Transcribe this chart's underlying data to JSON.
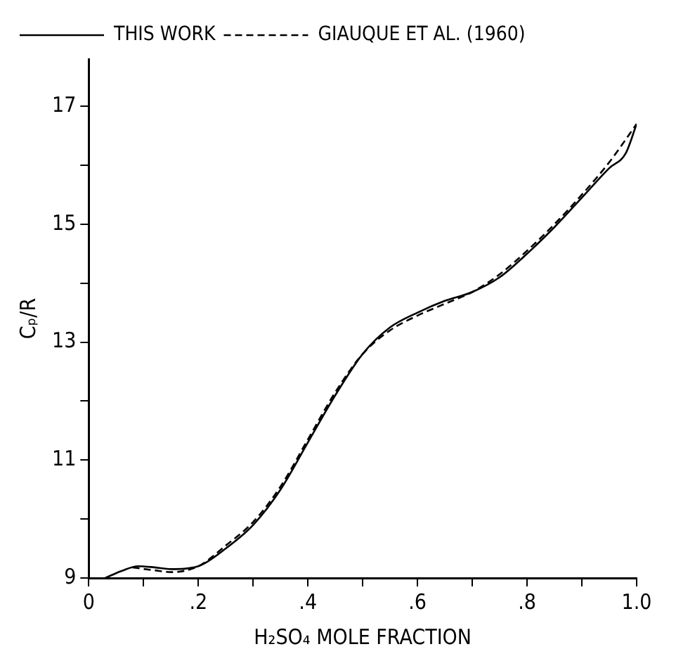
{
  "chart_data": {
    "type": "line",
    "xlabel": "H₂SO₄ MOLE FRACTION",
    "ylabel": "Cₚ/R",
    "xlim": [
      0,
      1
    ],
    "xticks": [
      {
        "value": 0,
        "label": "0"
      },
      {
        "value": 0.1,
        "label": null
      },
      {
        "value": 0.2,
        "label": ".2"
      },
      {
        "value": 0.3,
        "label": null
      },
      {
        "value": 0.4,
        "label": ".4"
      },
      {
        "value": 0.5,
        "label": null
      },
      {
        "value": 0.6,
        "label": ".6"
      },
      {
        "value": 0.7,
        "label": null
      },
      {
        "value": 0.8,
        "label": ".8"
      },
      {
        "value": 0.9,
        "label": null
      },
      {
        "value": 1,
        "label": "1.0"
      }
    ],
    "ylim": [
      9,
      17.8
    ],
    "yticks": [
      9,
      {
        "value": 10,
        "label": null
      },
      11,
      {
        "value": 12,
        "label": null
      },
      13,
      {
        "value": 14,
        "label": null
      },
      15,
      {
        "value": 16,
        "label": null
      },
      17
    ],
    "grid": false,
    "legend": "top left",
    "marker": "none",
    "series": [
      {
        "name": "THIS WORK",
        "color": "#000000",
        "line_style": "solid",
        "x": [
          0.03,
          0.06,
          0.09,
          0.12,
          0.15,
          0.2,
          0.25,
          0.3,
          0.35,
          0.4,
          0.45,
          0.5,
          0.55,
          0.6,
          0.65,
          0.7,
          0.75,
          0.8,
          0.85,
          0.9,
          0.95,
          0.98,
          1.0
        ],
        "values": [
          9.0,
          9.12,
          9.2,
          9.18,
          9.15,
          9.2,
          9.5,
          9.9,
          10.5,
          11.3,
          12.1,
          12.8,
          13.25,
          13.5,
          13.7,
          13.85,
          14.1,
          14.5,
          14.95,
          15.45,
          15.95,
          16.2,
          16.7
        ]
      },
      {
        "name": "GIAUQUE ET AL. (1960)",
        "color": "#000000",
        "line_style": "dashed",
        "x": [
          0.08,
          0.12,
          0.15,
          0.2,
          0.25,
          0.3,
          0.35,
          0.4,
          0.45,
          0.5,
          0.55,
          0.6,
          0.65,
          0.7,
          0.75,
          0.8,
          0.85,
          0.9,
          0.95,
          1.0
        ],
        "values": [
          9.18,
          9.13,
          9.1,
          9.2,
          9.55,
          9.95,
          10.55,
          11.35,
          12.15,
          12.8,
          13.2,
          13.45,
          13.65,
          13.85,
          14.15,
          14.55,
          15.0,
          15.5,
          16.05,
          16.7
        ]
      }
    ]
  }
}
